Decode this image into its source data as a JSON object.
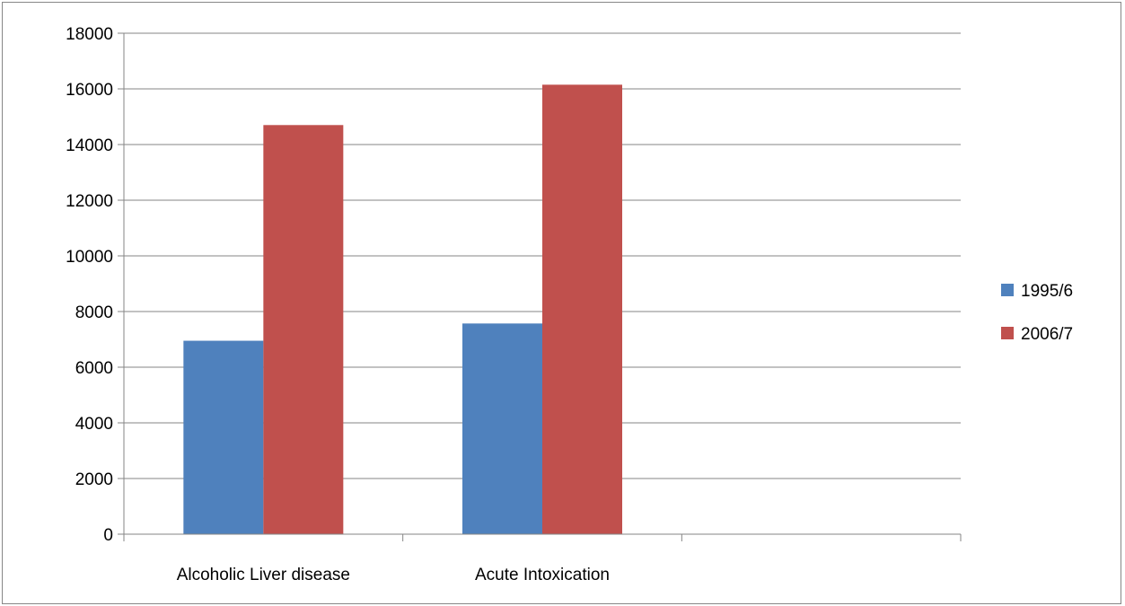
{
  "chart_data": {
    "type": "bar",
    "title": "",
    "xlabel": "",
    "ylabel": "",
    "categories": [
      "Alcoholic Liver disease",
      "Acute Intoxication",
      ""
    ],
    "series": [
      {
        "name": "1995/6",
        "color": "#4F81BD",
        "values": [
          6950,
          7570,
          null
        ]
      },
      {
        "name": "2006/7",
        "color": "#C0504D",
        "values": [
          14700,
          16150,
          null
        ]
      }
    ],
    "ylim": [
      0,
      18000
    ],
    "yticks": [
      "0",
      "2000",
      "4000",
      "6000",
      "8000",
      "10000",
      "12000",
      "14000",
      "16000",
      "18000"
    ],
    "grid": true,
    "legend": "right"
  }
}
